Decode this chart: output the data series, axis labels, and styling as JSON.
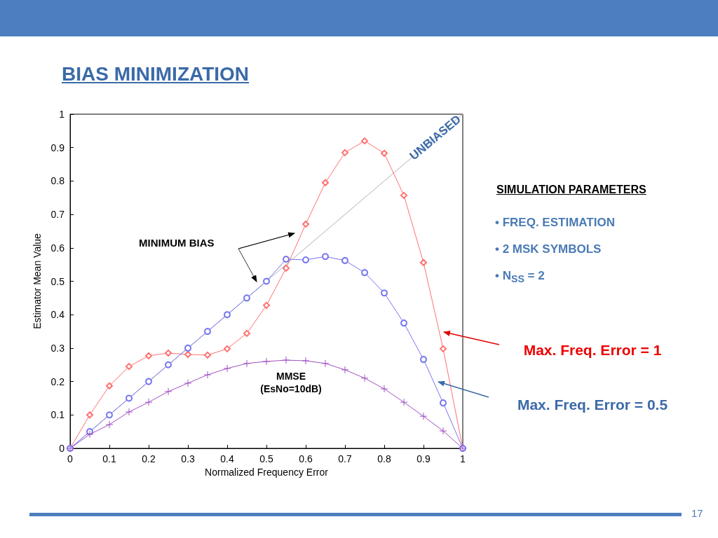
{
  "chart_data": {
    "type": "line",
    "title": "BIAS MINIMIZATION",
    "xlabel": "Normalized Frequency Error",
    "ylabel": "Estimator Mean Value",
    "x": [
      0,
      0.05,
      0.1,
      0.15,
      0.2,
      0.25,
      0.3,
      0.35,
      0.4,
      0.45,
      0.5,
      0.55,
      0.6,
      0.65,
      0.7,
      0.75,
      0.8,
      0.85,
      0.9,
      0.95,
      1
    ],
    "series": [
      {
        "x": [
          0,
          1
        ],
        "values": [
          0,
          1
        ],
        "color": "#b0b0b0"
      },
      {
        "name": "Max. Freq. Error = 1",
        "color": "#ff7070",
        "marker": "diamond",
        "values": [
          0,
          0.1,
          0.187,
          0.245,
          0.277,
          0.285,
          0.281,
          0.279,
          0.298,
          0.344,
          0.428,
          0.539,
          0.671,
          0.795,
          0.885,
          0.92,
          0.883,
          0.757,
          0.556,
          0.298,
          0
        ]
      },
      {
        "name": "Max. Freq. Error = 0.5",
        "color": "#7575f0",
        "marker": "circle",
        "values": [
          0,
          0.05,
          0.1,
          0.15,
          0.2,
          0.25,
          0.3,
          0.35,
          0.4,
          0.45,
          0.5,
          0.566,
          0.564,
          0.574,
          0.562,
          0.526,
          0.465,
          0.375,
          0.266,
          0.136,
          0
        ]
      },
      {
        "color": "#a050c0",
        "marker": "cross",
        "values": [
          0,
          0.042,
          0.071,
          0.109,
          0.138,
          0.17,
          0.195,
          0.22,
          0.239,
          0.254,
          0.26,
          0.264,
          0.262,
          0.254,
          0.235,
          0.21,
          0.178,
          0.138,
          0.096,
          0.052,
          0
        ]
      }
    ],
    "xlim": [
      0,
      1
    ],
    "xticks": [
      0,
      0.1,
      0.2,
      0.3,
      0.4,
      0.5,
      0.6,
      0.7,
      0.8,
      0.9,
      1
    ],
    "ylim": [
      0,
      1
    ],
    "yticks": [
      0,
      0.1,
      0.2,
      0.3,
      0.4,
      0.5,
      0.6,
      0.7,
      0.8,
      0.9,
      1
    ],
    "grid": false,
    "legend": false,
    "line_style": "solid",
    "annotations": [
      {
        "text": "UNBIASED",
        "x": 0.93,
        "y": 0.93
      },
      "MINIMUM BIAS",
      "MMSE\n(EsNo=10dB)",
      "SIMULATION PARAMETERS",
      "• FREQ. ESTIMATION",
      "• 2 MSK SYMBOLS",
      "• N$_{SS}$ = 2",
      "17"
    ]
  }
}
